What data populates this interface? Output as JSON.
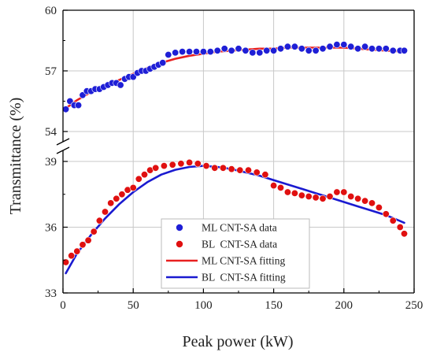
{
  "chart_data": {
    "type": "scatter",
    "xlabel": "Peak power (kW)",
    "ylabel": "Transmittance (%)",
    "xlim": [
      0,
      250
    ],
    "x_ticks": [
      0,
      50,
      100,
      150,
      200,
      250
    ],
    "broken_y_axis": true,
    "upper_panel": {
      "ylim": [
        54,
        60
      ],
      "y_ticks": [
        54,
        57,
        60
      ]
    },
    "lower_panel": {
      "ylim": [
        33,
        39
      ],
      "y_ticks": [
        33,
        36,
        39
      ]
    },
    "grid": true,
    "legend_position": "bottom-center",
    "series": [
      {
        "name": "ML CNT-SA data",
        "kind": "scatter",
        "color": "#1f1fd6",
        "x": [
          2,
          5,
          8,
          11,
          14,
          17,
          20,
          23,
          26,
          29,
          32,
          35,
          38,
          41,
          44,
          47,
          50,
          53,
          56,
          59,
          62,
          65,
          68,
          71,
          75,
          80,
          85,
          90,
          95,
          100,
          105,
          110,
          115,
          120,
          125,
          130,
          135,
          140,
          145,
          150,
          155,
          160,
          165,
          170,
          175,
          180,
          185,
          190,
          195,
          200,
          205,
          210,
          215,
          220,
          225,
          230,
          235,
          240,
          243
        ],
        "y": [
          55.1,
          55.5,
          55.3,
          55.3,
          55.8,
          56.0,
          56.0,
          56.1,
          56.1,
          56.2,
          56.3,
          56.4,
          56.4,
          56.3,
          56.6,
          56.7,
          56.7,
          56.9,
          57.0,
          57.0,
          57.1,
          57.2,
          57.3,
          57.4,
          57.8,
          57.9,
          57.95,
          57.95,
          57.95,
          57.95,
          57.95,
          58.0,
          58.1,
          58.0,
          58.1,
          58.0,
          57.9,
          57.9,
          58.0,
          58.0,
          58.1,
          58.2,
          58.2,
          58.1,
          58.0,
          58.0,
          58.1,
          58.2,
          58.3,
          58.3,
          58.2,
          58.1,
          58.2,
          58.1,
          58.1,
          58.1,
          58.0,
          58.0,
          58.0
        ]
      },
      {
        "name": "BL  CNT-SA data",
        "kind": "scatter",
        "color": "#e01010",
        "x": [
          2,
          6,
          10,
          14,
          18,
          22,
          26,
          30,
          34,
          38,
          42,
          46,
          50,
          54,
          58,
          62,
          66,
          72,
          78,
          84,
          90,
          96,
          102,
          108,
          114,
          120,
          126,
          132,
          138,
          144,
          150,
          155,
          160,
          165,
          170,
          175,
          180,
          185,
          190,
          195,
          200,
          205,
          210,
          215,
          220,
          225,
          230,
          235,
          240,
          243
        ],
        "y": [
          34.4,
          34.7,
          34.9,
          35.2,
          35.4,
          35.8,
          36.3,
          36.7,
          37.1,
          37.3,
          37.5,
          37.7,
          37.8,
          38.2,
          38.4,
          38.6,
          38.7,
          38.8,
          38.85,
          38.9,
          38.95,
          38.9,
          38.8,
          38.7,
          38.7,
          38.65,
          38.6,
          38.6,
          38.5,
          38.4,
          37.9,
          37.8,
          37.6,
          37.55,
          37.45,
          37.4,
          37.35,
          37.3,
          37.4,
          37.6,
          37.6,
          37.4,
          37.3,
          37.2,
          37.1,
          36.9,
          36.6,
          36.3,
          36.0,
          35.7
        ]
      },
      {
        "name": "ML CNT-SA fitting",
        "kind": "line",
        "color": "#e82020",
        "x": [
          2,
          10,
          20,
          30,
          40,
          50,
          60,
          70,
          80,
          90,
          100,
          110,
          120,
          130,
          140,
          150,
          160,
          170,
          180,
          190,
          200,
          210,
          220,
          230,
          243
        ],
        "y": [
          55.15,
          55.55,
          55.95,
          56.25,
          56.55,
          56.85,
          57.15,
          57.4,
          57.6,
          57.75,
          57.85,
          57.95,
          58.0,
          58.05,
          58.1,
          58.1,
          58.15,
          58.15,
          58.15,
          58.15,
          58.15,
          58.1,
          58.05,
          58.0,
          57.95
        ]
      },
      {
        "name": "BL  CNT-SA fitting",
        "kind": "line",
        "color": "#1a1ad0",
        "x": [
          2,
          10,
          20,
          30,
          40,
          50,
          60,
          70,
          80,
          90,
          100,
          110,
          120,
          130,
          140,
          150,
          160,
          170,
          180,
          190,
          200,
          210,
          220,
          230,
          243
        ],
        "y": [
          33.9,
          34.8,
          35.65,
          36.4,
          37.05,
          37.6,
          38.05,
          38.4,
          38.62,
          38.75,
          38.8,
          38.75,
          38.65,
          38.5,
          38.35,
          38.15,
          37.95,
          37.75,
          37.55,
          37.35,
          37.15,
          36.95,
          36.75,
          36.55,
          36.2
        ]
      }
    ]
  }
}
